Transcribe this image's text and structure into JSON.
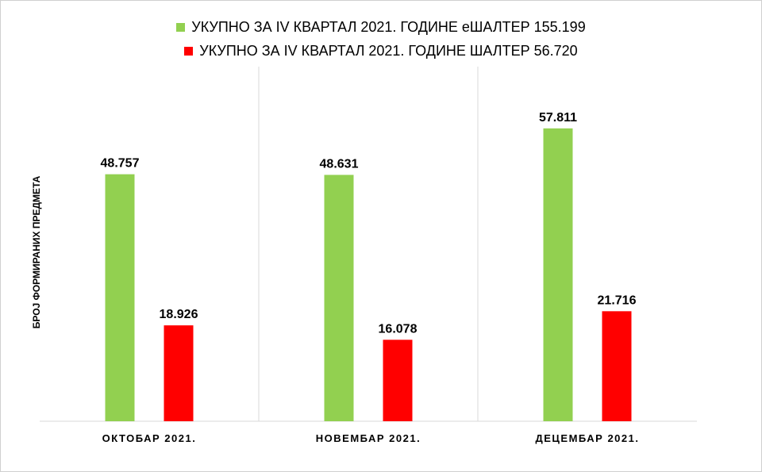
{
  "chart_data": {
    "type": "bar",
    "categories": [
      "ОКТОБАР 2021.",
      "НОВЕМБАР 2021.",
      "ДЕЦЕМБАР 2021."
    ],
    "series": [
      {
        "name": "УКУПНО ЗА IV КВАРТАЛ 2021. ГОДИНЕ еШАЛТЕР 155.199",
        "values": [
          48757,
          48631,
          57811
        ],
        "labels": [
          "48.757",
          "48.631",
          "57.811"
        ],
        "color": "#92d050"
      },
      {
        "name": "УКУПНО ЗА IV КВАРТАЛ 2021. ГОДИНЕ ШАЛТЕР 56.720",
        "values": [
          18926,
          16078,
          21716
        ],
        "labels": [
          "18.926",
          "16.078",
          "21.716"
        ],
        "color": "#ff0000"
      }
    ],
    "title": "",
    "xlabel": "",
    "ylabel": "БРОЈ ФОРМИРАНИХ ПРЕДМЕТА",
    "ylim": [
      0,
      70000
    ],
    "grid": false,
    "legend_position": "top"
  }
}
